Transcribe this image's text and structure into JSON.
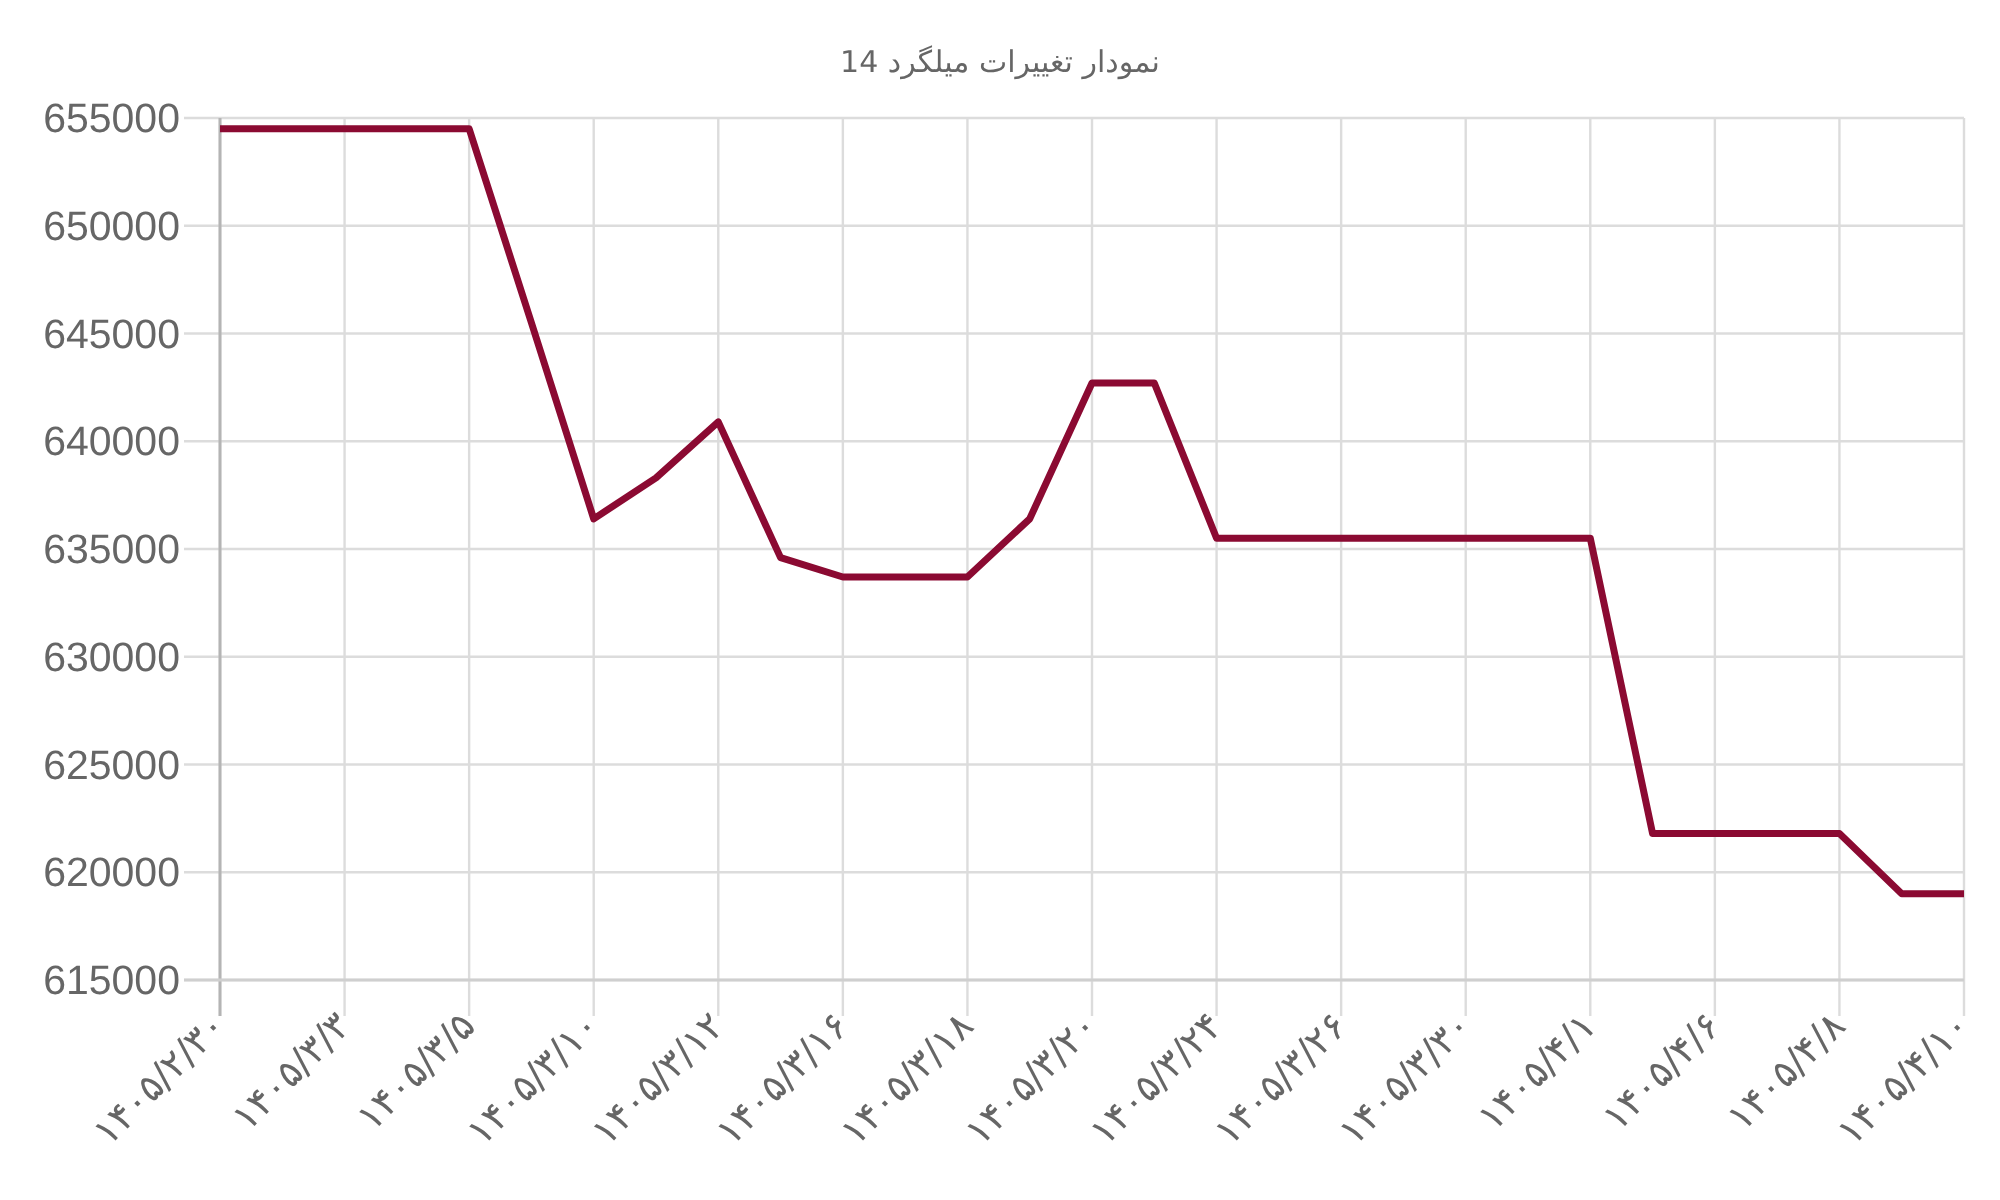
{
  "chart_data": {
    "type": "line",
    "title": "نمودار تغییرات میلگرد 14",
    "categories": [
      "۱۴۰۵/۲/۳۰",
      null,
      "۱۴۰۵/۳/۳",
      null,
      "۱۴۰۵/۳/۵",
      null,
      "۱۴۰۵/۳/۱۰",
      null,
      "۱۴۰۵/۳/۱۲",
      null,
      "۱۴۰۵/۳/۱۶",
      null,
      "۱۴۰۵/۳/۱۸",
      null,
      "۱۴۰۵/۳/۲۰",
      null,
      "۱۴۰۵/۳/۲۴",
      null,
      "۱۴۰۵/۳/۲۶",
      null,
      "۱۴۰۵/۳/۳۰",
      null,
      "۱۴۰۵/۴/۱",
      null,
      "۱۴۰۵/۴/۶",
      null,
      "۱۴۰۵/۴/۸",
      null,
      "۱۴۰۵/۴/۱۰"
    ],
    "values": [
      654500,
      654500,
      654500,
      654500,
      654500,
      645500,
      636400,
      638300,
      640900,
      634600,
      633700,
      633700,
      633700,
      636400,
      642700,
      642700,
      635500,
      635500,
      635500,
      635500,
      635500,
      635500,
      635500,
      621800,
      621800,
      621800,
      621800,
      619000,
      619000
    ],
    "color": "#8b0a32",
    "ylim": [
      615000,
      655000
    ],
    "yticks": [
      615000,
      620000,
      625000,
      630000,
      635000,
      640000,
      645000,
      650000,
      655000
    ],
    "grid": true,
    "line_style": "solid"
  }
}
